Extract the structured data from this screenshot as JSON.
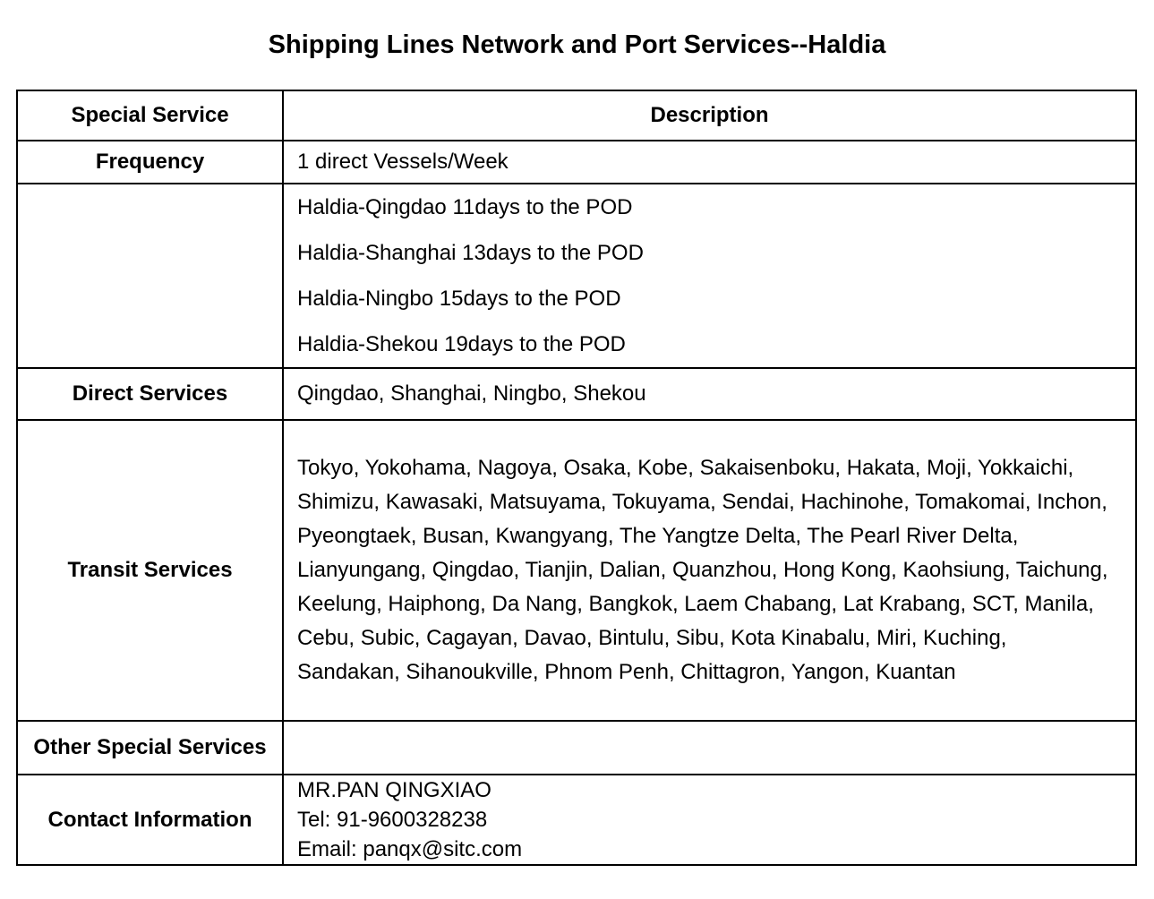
{
  "title": "Shipping Lines Network and Port Services--Haldia",
  "colors": {
    "text": "#000000",
    "border": "#000000",
    "background": "#ffffff"
  },
  "table": {
    "columns": [
      "Special Service",
      "Description"
    ],
    "rows": [
      {
        "label": "Frequency",
        "description": "1 direct Vessels/Week"
      },
      {
        "label": "",
        "transit_times": [
          "Haldia-Qingdao 11days to the POD",
          "Haldia-Shanghai 13days to the POD",
          "Haldia-Ningbo 15days to the POD",
          "Haldia-Shekou 19days to the POD"
        ]
      },
      {
        "label": "Direct Services",
        "description": "Qingdao, Shanghai, Ningbo, Shekou"
      },
      {
        "label": "Transit Services",
        "description": "Tokyo, Yokohama, Nagoya, Osaka, Kobe, Sakaisenboku, Hakata, Moji, Yokkaichi, Shimizu, Kawasaki, Matsuyama, Tokuyama, Sendai, Hachinohe, Tomakomai, Inchon, Pyeongtaek, Busan, Kwangyang, The Yangtze Delta, The Pearl River Delta, Lianyungang, Qingdao, Tianjin, Dalian, Quanzhou, Hong Kong, Kaohsiung, Taichung, Keelung, Haiphong, Da Nang, Bangkok, Laem Chabang, Lat Krabang, SCT, Manila, Cebu, Subic, Cagayan, Davao, Bintulu, Sibu, Kota Kinabalu, Miri, Kuching, Sandakan, Sihanoukville, Phnom Penh, Chittagron, Yangon, Kuantan"
      },
      {
        "label": "Other Special Services",
        "description": ""
      },
      {
        "label": "Contact Information",
        "contact_lines": [
          "MR.PAN QINGXIAO",
          "Tel: 91-9600328238",
          "Email: panqx@sitc.com"
        ]
      }
    ]
  }
}
